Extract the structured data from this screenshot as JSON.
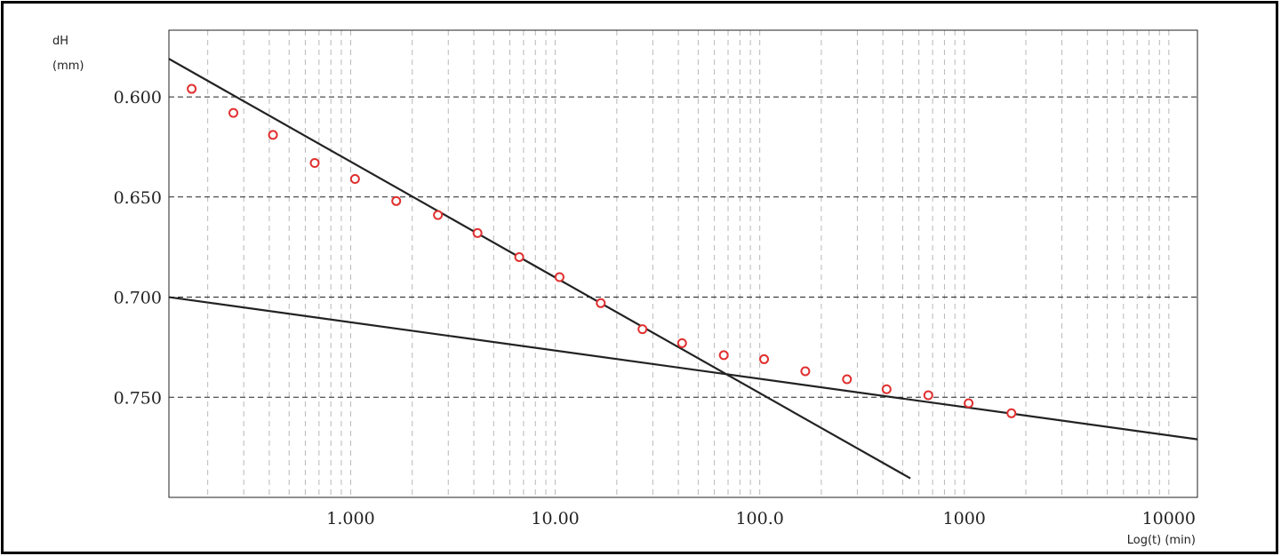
{
  "chart_data": {
    "type": "scatter",
    "title": "",
    "ylabel": "dH",
    "ylabel_unit": "(mm)",
    "xlabel": "Log(t) (min)",
    "x_scale": "log",
    "y_inverted": true,
    "xlim": [
      0.1292,
      13800
    ],
    "ylim": [
      0.5667,
      0.8
    ]
  },
  "axes": {
    "x_ticks": [
      {
        "value": 1,
        "label": "1.000"
      },
      {
        "value": 10,
        "label": "10.00"
      },
      {
        "value": 100,
        "label": "100.0"
      },
      {
        "value": 1000,
        "label": "1000"
      },
      {
        "value": 10000,
        "label": "10000"
      }
    ],
    "y_ticks": [
      {
        "value": 0.6,
        "label": "0.600"
      },
      {
        "value": 0.65,
        "label": "0.650"
      },
      {
        "value": 0.7,
        "label": "0.700"
      },
      {
        "value": 0.75,
        "label": "0.750"
      }
    ]
  },
  "series": [
    {
      "kind": "points",
      "color": "#e0302f",
      "points": [
        {
          "x": 0.167,
          "y": 0.596
        },
        {
          "x": 0.267,
          "y": 0.608
        },
        {
          "x": 0.417,
          "y": 0.619
        },
        {
          "x": 0.667,
          "y": 0.633
        },
        {
          "x": 1.05,
          "y": 0.641
        },
        {
          "x": 1.67,
          "y": 0.652
        },
        {
          "x": 2.67,
          "y": 0.659
        },
        {
          "x": 4.17,
          "y": 0.668
        },
        {
          "x": 6.67,
          "y": 0.68
        },
        {
          "x": 10.5,
          "y": 0.69
        },
        {
          "x": 16.7,
          "y": 0.703
        },
        {
          "x": 26.7,
          "y": 0.716
        },
        {
          "x": 41.7,
          "y": 0.723
        },
        {
          "x": 66.7,
          "y": 0.729
        },
        {
          "x": 105,
          "y": 0.731
        },
        {
          "x": 167,
          "y": 0.737
        },
        {
          "x": 267,
          "y": 0.741
        },
        {
          "x": 417,
          "y": 0.746
        },
        {
          "x": 667,
          "y": 0.749
        },
        {
          "x": 1050,
          "y": 0.753
        },
        {
          "x": 1700,
          "y": 0.758
        }
      ]
    },
    {
      "kind": "line",
      "color": "#222222",
      "from": {
        "x": 0.1292,
        "y": 0.581
      },
      "to": {
        "x": 545,
        "y": 0.7905
      }
    },
    {
      "kind": "line",
      "color": "#222222",
      "from": {
        "x": 0.1292,
        "y": 0.7
      },
      "to": {
        "x": 13800,
        "y": 0.771
      }
    }
  ]
}
